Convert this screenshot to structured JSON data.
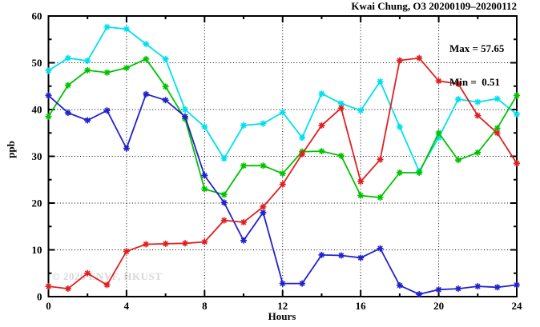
{
  "title": "Kwai Chung, O3 20200109–20200112",
  "annotation": {
    "max_label": "Max = 57.65",
    "min_label": "Min =  0.51"
  },
  "watermark": "© 2026 ENVF, HKUST",
  "axes": {
    "ylabel": "ppb",
    "xlabel": "Hours"
  },
  "chart_data": {
    "type": "line",
    "title": "Kwai Chung, O3 20200109–20200112",
    "xlabel": "Hours",
    "ylabel": "ppb",
    "xlim": [
      0,
      24
    ],
    "ylim": [
      0,
      60
    ],
    "x_major_ticks": [
      0,
      4,
      8,
      12,
      16,
      20,
      24
    ],
    "x_minor_step": 2,
    "y_major_ticks": [
      0,
      10,
      20,
      30,
      40,
      50,
      60
    ],
    "y_minor_step": 5,
    "grid": true,
    "legend": "none",
    "max_value": 57.65,
    "min_value": 0.51,
    "marker": "asterisk",
    "x": [
      0,
      1,
      2,
      3,
      4,
      5,
      6,
      7,
      8,
      9,
      10,
      11,
      12,
      13,
      14,
      15,
      16,
      17,
      18,
      19,
      20,
      21,
      22,
      23,
      24
    ],
    "series": [
      {
        "name": "cyan",
        "color": "#00E0EE",
        "values": [
          48.3,
          51.0,
          50.4,
          57.65,
          57.2,
          54.0,
          50.8,
          40.0,
          36.3,
          29.5,
          36.6,
          37.0,
          39.4,
          34.0,
          43.4,
          41.3,
          39.8,
          46.0,
          36.3,
          26.8,
          34.0,
          42.2,
          41.6,
          42.3,
          39.0
        ]
      },
      {
        "name": "green",
        "color": "#00C400",
        "values": [
          38.5,
          45.2,
          48.4,
          47.9,
          48.9,
          50.8,
          44.9,
          38.0,
          23.0,
          21.8,
          28.0,
          28.0,
          26.3,
          31.0,
          31.1,
          30.1,
          21.6,
          21.2,
          26.5,
          26.5,
          35.0,
          29.2,
          30.8,
          36.0,
          43.0
        ]
      },
      {
        "name": "blue",
        "color": "#2222CC",
        "values": [
          43.0,
          39.3,
          37.7,
          39.8,
          31.7,
          43.3,
          42.0,
          38.5,
          25.9,
          20.1,
          12.0,
          18.0,
          2.8,
          2.8,
          8.9,
          8.8,
          8.3,
          10.3,
          2.4,
          0.51,
          1.5,
          1.7,
          2.2,
          2.0,
          2.5
        ]
      },
      {
        "name": "red",
        "color": "#E02020",
        "values": [
          2.2,
          1.7,
          5.0,
          2.5,
          9.7,
          11.2,
          11.3,
          11.4,
          11.7,
          16.3,
          15.9,
          19.2,
          24.0,
          30.5,
          36.6,
          40.3,
          24.6,
          29.3,
          50.5,
          51.0,
          46.1,
          45.5,
          38.7,
          35.0,
          28.5
        ]
      }
    ]
  }
}
